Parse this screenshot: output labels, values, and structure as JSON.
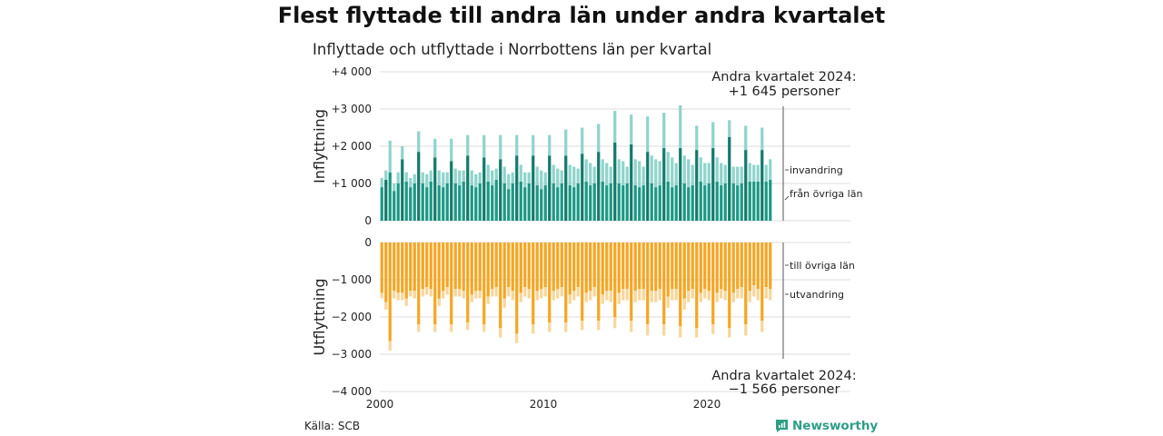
{
  "title": "Flest flyttade till andra län under andra kvartalet",
  "subtitle": "Inflyttade och utflyttade i Norrbottens län per kvartal",
  "source": "Källa: SCB",
  "brand": "Newsworthy",
  "colors": {
    "in_domestic": "#1a9985",
    "in_domestic_q2": "#137a6b",
    "in_immigration": "#8fd4cc",
    "out_domestic": "#f5a623",
    "out_emigration": "#f8d69a",
    "brand": "#2e9e86"
  },
  "chart_data": {
    "type": "bar",
    "stacked": true,
    "x_start_year": 2000,
    "quarters_per_year": 4,
    "x_ticks": [
      2000,
      2010,
      2020
    ],
    "panels": [
      {
        "name": "Inflyttning",
        "ylabel": "Inflyttning",
        "ylim": [
          0,
          4000
        ],
        "y_ticks": [
          0,
          1000,
          2000,
          3000,
          4000
        ],
        "y_tick_labels": [
          "0",
          "+1 000",
          "+2 000",
          "+3 000",
          "+4 000"
        ],
        "annotation": {
          "line1": "Andra kvartalet 2024:",
          "line2": "+1 645 personer"
        },
        "series": [
          {
            "name": "från övriga län",
            "values": [
              900,
              1100,
              1300,
              800,
              1000,
              1650,
              1050,
              900,
              1000,
              1850,
              1000,
              900,
              1050,
              1700,
              950,
              900,
              1000,
              1600,
              1000,
              950,
              1050,
              1750,
              950,
              900,
              1000,
              1700,
              1050,
              950,
              1100,
              1650,
              1000,
              850,
              1000,
              1750,
              1050,
              900,
              1000,
              1750,
              950,
              850,
              950,
              1750,
              1000,
              900,
              1000,
              1750,
              950,
              900,
              1000,
              1800,
              1050,
              950,
              1000,
              1850,
              1050,
              950,
              1000,
              2100,
              1000,
              950,
              1000,
              2050,
              950,
              900,
              950,
              1850,
              1000,
              900,
              950,
              1950,
              1050,
              900,
              950,
              1950,
              1000,
              900,
              950,
              1900,
              1050,
              950,
              1000,
              1950,
              1050,
              950,
              1000,
              2250,
              1000,
              950,
              1000,
              1900,
              1050,
              1050,
              1050,
              1900,
              1050,
              1100
            ]
          },
          {
            "name": "invandring",
            "values": [
              250,
              250,
              850,
              200,
              300,
              350,
              250,
              250,
              250,
              550,
              300,
              350,
              300,
              500,
              400,
              400,
              300,
              600,
              400,
              400,
              300,
              550,
              400,
              350,
              300,
              600,
              450,
              400,
              300,
              650,
              450,
              400,
              300,
              550,
              450,
              400,
              300,
              550,
              500,
              500,
              350,
              550,
              500,
              500,
              350,
              700,
              550,
              550,
              400,
              700,
              600,
              600,
              450,
              750,
              600,
              600,
              450,
              850,
              650,
              650,
              450,
              800,
              700,
              700,
              500,
              950,
              750,
              750,
              650,
              950,
              800,
              800,
              600,
              1150,
              750,
              750,
              550,
              650,
              650,
              600,
              550,
              700,
              650,
              600,
              500,
              450,
              450,
              500,
              450,
              650,
              500,
              450,
              450,
              600,
              450,
              550
            ]
          }
        ]
      },
      {
        "name": "Utflyttning",
        "ylabel": "Utflyttning",
        "ylim": [
          -4000,
          0
        ],
        "y_ticks": [
          0,
          -1000,
          -2000,
          -3000,
          -4000
        ],
        "y_tick_labels": [
          "0",
          "−1 000",
          "−2 000",
          "−3 000",
          "−4 000"
        ],
        "annotation": {
          "line1": "Andra kvartalet 2024:",
          "line2": "−1 566 personer"
        },
        "series": [
          {
            "name": "till övriga län",
            "values": [
              -1350,
              -1600,
              -2650,
              -1300,
              -1350,
              -1350,
              -1500,
              -1300,
              -1300,
              -2200,
              -1250,
              -1200,
              -1250,
              -2200,
              -1500,
              -1300,
              -1200,
              -2200,
              -1250,
              -1250,
              -1300,
              -2150,
              -1400,
              -1300,
              -1300,
              -2200,
              -1450,
              -1250,
              -1200,
              -2300,
              -1500,
              -1200,
              -1300,
              -2450,
              -1350,
              -1200,
              -1250,
              -2200,
              -1300,
              -1250,
              -1200,
              -2150,
              -1300,
              -1250,
              -1200,
              -2150,
              -1400,
              -1300,
              -1200,
              -2100,
              -1350,
              -1300,
              -1200,
              -2100,
              -1400,
              -1300,
              -1300,
              -2000,
              -1350,
              -1250,
              -1250,
              -2100,
              -1300,
              -1250,
              -1250,
              -2200,
              -1300,
              -1300,
              -1250,
              -2200,
              -1450,
              -1250,
              -1250,
              -2250,
              -1500,
              -1300,
              -1250,
              -2300,
              -1350,
              -1250,
              -1300,
              -2200,
              -1350,
              -1250,
              -1300,
              -2300,
              -1350,
              -1250,
              -1200,
              -2200,
              -1300,
              -1150,
              -1250,
              -2100,
              -1200,
              -1250
            ]
          },
          {
            "name": "utvandring",
            "values": [
              -150,
              -200,
              -250,
              -200,
              -200,
              -200,
              -200,
              -150,
              -200,
              -200,
              -200,
              -200,
              -200,
              -200,
              -200,
              -200,
              -200,
              -200,
              -200,
              -200,
              -200,
              -200,
              -200,
              -200,
              -200,
              -200,
              -200,
              -200,
              -250,
              -250,
              -250,
              -250,
              -250,
              -250,
              -250,
              -250,
              -250,
              -250,
              -250,
              -250,
              -250,
              -250,
              -250,
              -250,
              -250,
              -250,
              -250,
              -250,
              -250,
              -250,
              -250,
              -250,
              -250,
              -250,
              -250,
              -250,
              -300,
              -300,
              -300,
              -300,
              -300,
              -300,
              -300,
              -300,
              -300,
              -300,
              -300,
              -300,
              -300,
              -300,
              -300,
              -300,
              -300,
              -300,
              -300,
              -300,
              -250,
              -250,
              -250,
              -250,
              -250,
              -250,
              -250,
              -250,
              -250,
              -250,
              -250,
              -250,
              -300,
              -300,
              -300,
              -300,
              -300,
              -300,
              -300,
              -300
            ]
          }
        ]
      }
    ]
  }
}
